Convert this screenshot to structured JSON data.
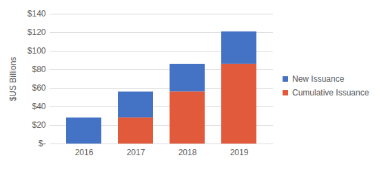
{
  "chart_data": {
    "type": "bar",
    "stacked": true,
    "categories": [
      "2016",
      "2017",
      "2018",
      "2019"
    ],
    "series": [
      {
        "name": "New Issuance",
        "color": "#4472c4",
        "values": [
          28,
          28,
          30,
          35
        ]
      },
      {
        "name": "Cumulative Issuance",
        "color": "#e15a3b",
        "values": [
          0,
          28,
          56,
          86
        ]
      }
    ],
    "y_label": "$US Billions",
    "ylim": [
      0,
      140
    ],
    "yticks": [
      {
        "value": 0,
        "label": "$-"
      },
      {
        "value": 20,
        "label": "$20"
      },
      {
        "value": 40,
        "label": "$40"
      },
      {
        "value": 60,
        "label": "$60"
      },
      {
        "value": 80,
        "label": "$80"
      },
      {
        "value": 100,
        "label": "$100"
      },
      {
        "value": 120,
        "label": "$120"
      },
      {
        "value": 140,
        "label": "$140"
      }
    ],
    "grid": true,
    "legend": "right"
  }
}
